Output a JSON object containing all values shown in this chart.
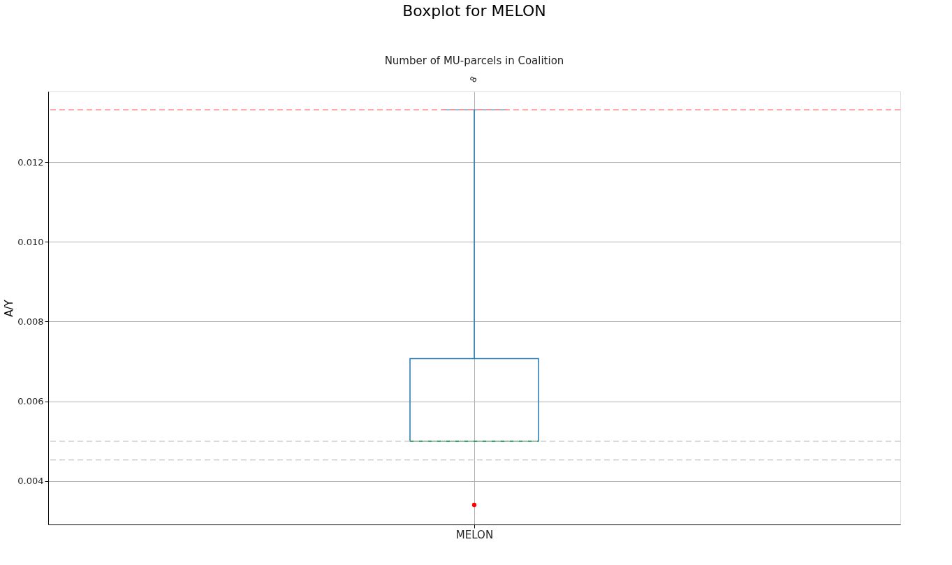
{
  "chart_data": {
    "type": "box",
    "title": "Boxplot for MELON",
    "x2label": "Number of MU-parcels in Coalition",
    "ylabel": "A/Y",
    "categories": [
      "MELON"
    ],
    "series": [
      {
        "color": "#1f77b4",
        "boxes": [
          {
            "low": 0.005,
            "q1": 0.005,
            "median": 0.005,
            "q3": 0.00707,
            "high": 0.01331
          }
        ]
      },
      {
        "type": "scatter",
        "x": [
          "MELON"
        ],
        "values": [
          0.0034
        ],
        "color": "#ff0000"
      }
    ],
    "ylim": [
      0.00291,
      0.01377
    ],
    "yticks": [
      {
        "value": 0.004,
        "label": "0.004"
      },
      {
        "value": 0.006,
        "label": "0.006"
      },
      {
        "value": 0.008,
        "label": "0.008"
      },
      {
        "value": 0.01,
        "label": "0.010"
      },
      {
        "value": 0.012,
        "label": "0.012"
      }
    ],
    "annotations": [
      "8"
    ],
    "ref_lines": [
      {
        "axis": "y",
        "value": 0.01331,
        "color": "#ff8080",
        "line_style": "dashed"
      },
      {
        "axis": "y",
        "value": 0.005,
        "color": "#c8c8c8",
        "line_style": "dashed"
      },
      {
        "axis": "y",
        "value": 0.00453,
        "color": "#c8c8c8",
        "line_style": "dashed"
      }
    ],
    "grid": true
  }
}
